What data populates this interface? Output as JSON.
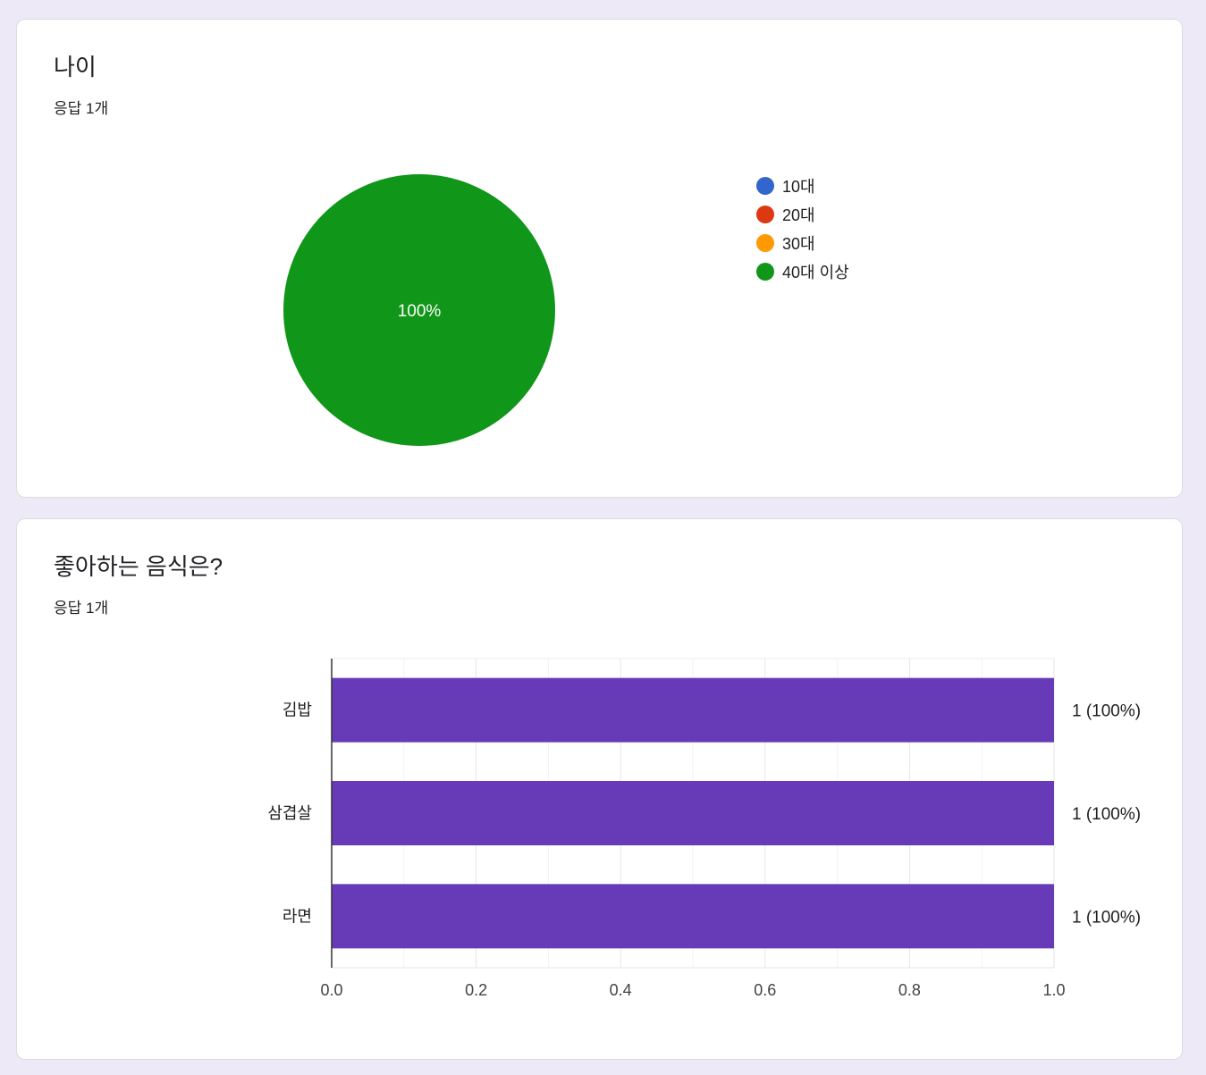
{
  "cards": [
    {
      "title": "나이",
      "response_count": "응답 1개",
      "chart_data": {
        "type": "pie",
        "categories": [
          "10대",
          "20대",
          "30대",
          "40대 이상"
        ],
        "values": [
          0,
          0,
          0,
          1
        ],
        "colors": [
          "#3366cc",
          "#dc3912",
          "#ff9900",
          "#109618"
        ],
        "slice_labels": [
          "",
          "",
          "",
          "100%"
        ],
        "legend_position": "right"
      }
    },
    {
      "title": "좋아하는 음식은?",
      "response_count": "응답 1개",
      "chart_data": {
        "type": "bar",
        "orientation": "horizontal",
        "categories": [
          "김밥",
          "삼겹살",
          "라면"
        ],
        "values": [
          1,
          1,
          1
        ],
        "value_labels": [
          "1 (100%)",
          "1 (100%)",
          "1 (100%)"
        ],
        "xlim": [
          0,
          1
        ],
        "xticks": [
          "0.0",
          "0.2",
          "0.4",
          "0.6",
          "0.8",
          "1.0"
        ],
        "grid": true,
        "color": "#673ab7"
      }
    }
  ]
}
